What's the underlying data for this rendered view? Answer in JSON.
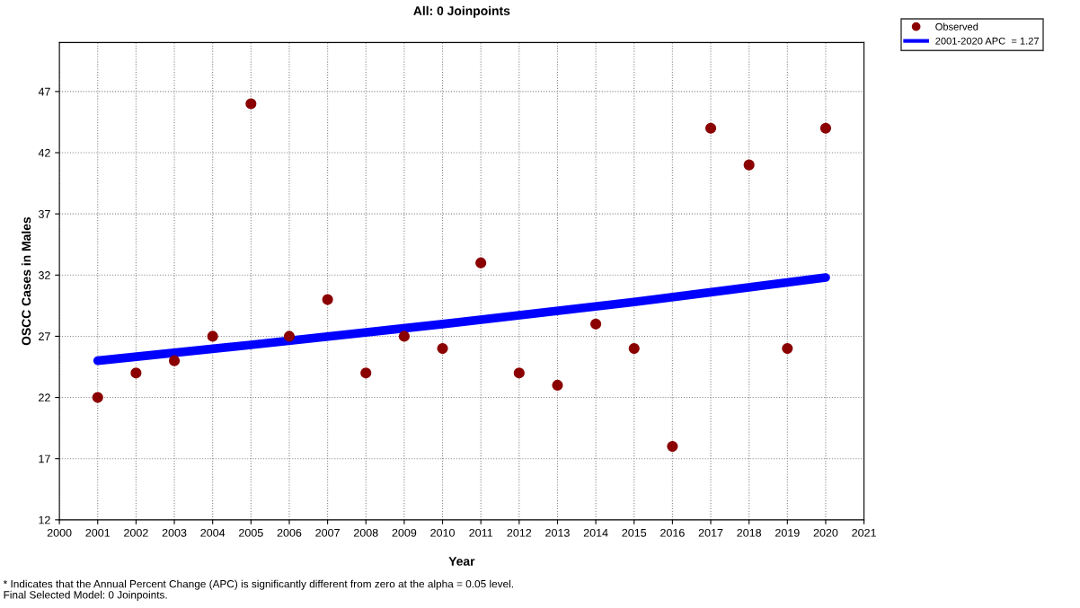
{
  "chart_data": {
    "type": "scatter",
    "title": "All: 0 Joinpoints",
    "xlabel": "Year",
    "ylabel": "OSCC Cases in Males",
    "series": [
      {
        "name": "Observed",
        "color": "#8b0000",
        "marker": "circle",
        "x": [
          2001,
          2002,
          2003,
          2004,
          2005,
          2006,
          2007,
          2008,
          2009,
          2010,
          2011,
          2012,
          2013,
          2014,
          2015,
          2016,
          2017,
          2018,
          2019,
          2020
        ],
        "values": [
          22,
          24,
          25,
          27,
          46,
          27,
          30,
          24,
          27,
          26,
          33,
          24,
          23,
          28,
          26,
          18,
          44,
          41,
          26,
          44
        ]
      },
      {
        "name": "2001-2020 APC  = 1.27",
        "type": "line",
        "color": "#0000ff",
        "marker": "none",
        "line_style": "solid",
        "x": [
          2001,
          2005,
          2010,
          2015,
          2020
        ],
        "values": [
          25.0,
          26.3,
          28.0,
          29.8,
          31.8
        ]
      }
    ],
    "xlim": [
      2000,
      2021
    ],
    "xticks": [
      2000,
      2001,
      2002,
      2003,
      2004,
      2005,
      2006,
      2007,
      2008,
      2009,
      2010,
      2011,
      2012,
      2013,
      2014,
      2015,
      2016,
      2017,
      2018,
      2019,
      2020,
      2021
    ],
    "ylim": [
      12,
      51
    ],
    "yticks": [
      12,
      17,
      22,
      27,
      32,
      37,
      42,
      47
    ],
    "grid": true,
    "legend": "top right",
    "annotations": [
      "* Indicates that the Annual Percent Change (APC) is significantly different from zero at the alpha = 0.05 level.",
      "Final Selected Model: 0 Joinpoints."
    ]
  }
}
